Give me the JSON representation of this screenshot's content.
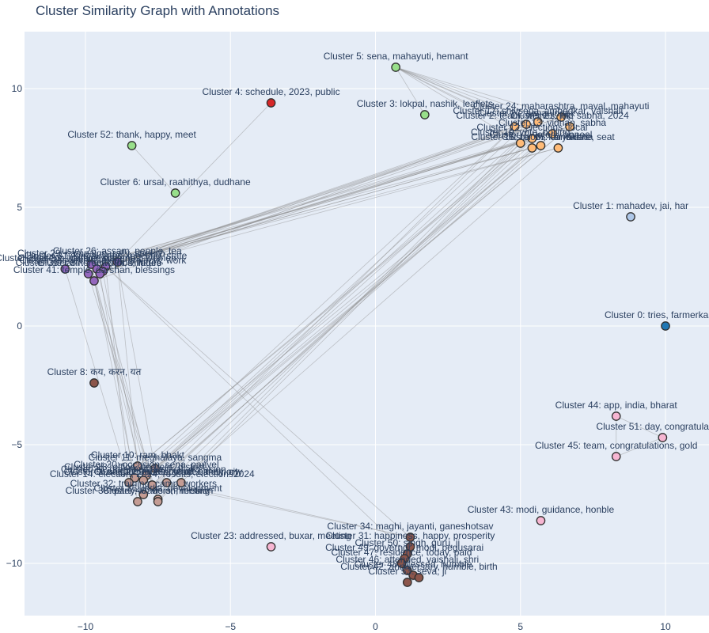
{
  "title": "Cluster Similarity Graph with Annotations",
  "chart_data": {
    "type": "scatter",
    "title": "Cluster Similarity Graph with Annotations",
    "xlabel": "",
    "ylabel": "",
    "xlim": [
      -12.1,
      11.5
    ],
    "ylim": [
      -12.2,
      12.4
    ],
    "xticks": [
      -10,
      -5,
      0,
      5,
      10
    ],
    "yticks": [
      -10,
      -5,
      0,
      5,
      10
    ],
    "grid": true,
    "legend": "none",
    "points": [
      {
        "id": 0,
        "label": "Cluster 0: tries, farmerkaskar",
        "x": 10.0,
        "y": 0.0,
        "color": "#1f77b4"
      },
      {
        "id": 1,
        "label": "Cluster 1: mahadev, jai, har",
        "x": 8.8,
        "y": 4.6,
        "color": "#aec7e8"
      },
      {
        "id": 4,
        "label": "Cluster 4: schedule, 2023, public",
        "x": -3.6,
        "y": 9.4,
        "color": "#d62728"
      },
      {
        "id": 5,
        "label": "Cluster 5: sena, mahayuti, hemant",
        "x": 0.7,
        "y": 10.9,
        "color": "#98df8a"
      },
      {
        "id": 3,
        "label": "Cluster 3: lokpal, nashik, leaflets",
        "x": 1.7,
        "y": 8.9,
        "color": "#98df8a"
      },
      {
        "id": 52,
        "label": "Cluster 52: thank, happy, meet",
        "x": -8.4,
        "y": 7.6,
        "color": "#98df8a"
      },
      {
        "id": 6,
        "label": "Cluster 6: ursal, raahithya, dudhane",
        "x": -6.9,
        "y": 5.6,
        "color": "#98df8a"
      },
      {
        "id": 24,
        "label": "Cluster 24: maharashtra, maval, mahayuti",
        "x": 6.4,
        "y": 8.8,
        "color": "#ffbb78"
      },
      {
        "id": 17,
        "label": "Cluster 17: shivsena, ambedkar, vaishali",
        "x": 5.6,
        "y": 8.6,
        "color": "#ffbb78"
      },
      {
        "id": 27,
        "label": "Cluster 27: sena, index",
        "x": 5.2,
        "y": 8.5,
        "color": "#ffbb78"
      },
      {
        "id": 2,
        "label": "Cluster 2: team, wishes, mp",
        "x": 4.8,
        "y": 8.4,
        "color": "#ffbb78"
      },
      {
        "id": 21,
        "label": "Cluster 21: lok, sabha, 2024",
        "x": 6.7,
        "y": 8.4,
        "color": "#ffbb78"
      },
      {
        "id": 13,
        "label": "Cluster 13: vidhan, sabha",
        "x": 6.1,
        "y": 8.1,
        "color": "#ffbb78"
      },
      {
        "id": 12,
        "label": "Cluster 12: elections, local",
        "x": 5.4,
        "y": 7.9,
        "color": "#ffbb78"
      },
      {
        "id": 19,
        "label": "Cluster 19: vote, polling",
        "x": 5.0,
        "y": 7.7,
        "color": "#ffbb78"
      },
      {
        "id": 7,
        "label": "Cluster 7: voters, appeal",
        "x": 5.7,
        "y": 7.6,
        "color": "#ffbb78"
      },
      {
        "id": 15,
        "label": "Cluster 15: booth, karyakarta",
        "x": 5.4,
        "y": 7.5,
        "color": "#ffbb78"
      },
      {
        "id": 16,
        "label": "Cluster 16: candidate, seat",
        "x": 6.3,
        "y": 7.5,
        "color": "#ffbb78"
      },
      {
        "id": 26,
        "label": "Cluster 26: assam, people, tea",
        "x": -8.9,
        "y": 2.7,
        "color": "#9467bd"
      },
      {
        "id": 29,
        "label": "Cluster 29: campaign, rally, speech",
        "x": -9.8,
        "y": 2.6,
        "color": "#9467bd"
      },
      {
        "id": 31,
        "label": "Cluster 31: karyakartas, meeting, state",
        "x": -9.3,
        "y": 2.5,
        "color": "#9467bd"
      },
      {
        "id": 33,
        "label": "Cluster 33: welfare, schemes, women",
        "x": -9.6,
        "y": 2.4,
        "color": "#9467bd"
      },
      {
        "id": 35,
        "label": "Cluster 35: development, projects, work",
        "x": -9.4,
        "y": 2.3,
        "color": "#9467bd"
      },
      {
        "id": 37,
        "label": "Cluster 37: youth, jobs, future",
        "x": -9.5,
        "y": 2.2,
        "color": "#9467bd"
      },
      {
        "id": 25,
        "label": "Cluster 25: sena, panvel, citizens",
        "x": -10.7,
        "y": 2.4,
        "color": "#9467bd"
      },
      {
        "id": 39,
        "label": "Cluster 39: farmers, water, villages",
        "x": -9.9,
        "y": 2.2,
        "color": "#9467bd"
      },
      {
        "id": 41,
        "label": "Cluster 41: temple, darshan, blessings",
        "x": -9.7,
        "y": 1.9,
        "color": "#9467bd"
      },
      {
        "id": 8,
        "label": "Cluster 8: कय, करन, यत",
        "x": -9.7,
        "y": -2.4,
        "color": "#8c564b"
      },
      {
        "id": 10,
        "label": "Cluster 10: ram, bhakt",
        "x": -8.2,
        "y": -5.9,
        "color": "#c49c94"
      },
      {
        "id": 11,
        "label": "Cluster 11: meghalaya, sangma",
        "x": -7.6,
        "y": -6.0,
        "color": "#c49c94"
      },
      {
        "id": 30,
        "label": "Cluster 30: occasion, sena, panvel",
        "x": -7.9,
        "y": -6.3,
        "color": "#c49c94"
      },
      {
        "id": 18,
        "label": "Cluster 18: office, bearers, district",
        "x": -8.3,
        "y": -6.4,
        "color": "#c49c94"
      },
      {
        "id": 20,
        "label": "Cluster 20: greetings, festival, occasion",
        "x": -8.0,
        "y": -6.5,
        "color": "#c49c94"
      },
      {
        "id": 9,
        "label": "Cluster 9: nagpur, routes, yatra",
        "x": -8.5,
        "y": -6.6,
        "color": "#c49c94"
      },
      {
        "id": 22,
        "label": "Cluster 22: tribute, leader, memory",
        "x": -7.2,
        "y": -6.6,
        "color": "#c49c94"
      },
      {
        "id": 28,
        "label": "Cluster 28: police, safety, city",
        "x": -6.7,
        "y": -6.6,
        "color": "#c49c94"
      },
      {
        "id": 14,
        "label": "Cluster 14: election, 2024, results, elections2024",
        "x": -7.7,
        "y": -6.7,
        "color": "#c49c94"
      },
      {
        "id": 32,
        "label": "Cluster 32: training, camp, workers",
        "x": -8.0,
        "y": -7.1,
        "color": "#c49c94"
      },
      {
        "id": 36,
        "label": "Cluster 36: india, development",
        "x": -7.5,
        "y": -7.3,
        "color": "#c49c94"
      },
      {
        "id": 38,
        "label": "Cluster 38: party, leaders, meeting",
        "x": -8.2,
        "y": -7.4,
        "color": "#c49c94"
      },
      {
        "id": 40,
        "label": "Cluster 40: vision, mission",
        "x": -7.5,
        "y": -7.4,
        "color": "#c49c94"
      },
      {
        "id": 44,
        "label": "Cluster 44: app, india, bharat",
        "x": 8.3,
        "y": -3.8,
        "color": "#f7b6d2"
      },
      {
        "id": 51,
        "label": "Cluster 51: day, congratulations",
        "x": 9.9,
        "y": -4.7,
        "color": "#f7b6d2"
      },
      {
        "id": 45,
        "label": "Cluster 45: team, congratulations, gold",
        "x": 8.3,
        "y": -5.5,
        "color": "#f7b6d2"
      },
      {
        "id": 43,
        "label": "Cluster 43: modi, guidance, honble",
        "x": 5.7,
        "y": -8.2,
        "color": "#f7b6d2"
      },
      {
        "id": 23,
        "label": "Cluster 23: addressed, buxar, meeting",
        "x": -3.6,
        "y": -9.3,
        "color": "#f7b6d2"
      },
      {
        "id": 34,
        "label": "Cluster 34: maghi, jayanti, ganeshotsav",
        "x": 1.2,
        "y": -8.9,
        "color": "#8c564b"
      },
      {
        "id": 31,
        "label": "Cluster 31: happiness, happy, prosperity",
        "x": 1.2,
        "y": -9.3,
        "color": "#8c564b"
      },
      {
        "id": 50,
        "label": "Cluster 50: singh, guru, ji",
        "x": 1.1,
        "y": -9.6,
        "color": "#8c564b"
      },
      {
        "id": 49,
        "label": "Cluster 49: governor, modi, begusarai",
        "x": 1.0,
        "y": -9.8,
        "color": "#8c564b"
      },
      {
        "id": 47,
        "label": "Cluster 47: residence, today, paid",
        "x": 0.9,
        "y": -10.0,
        "color": "#8c564b"
      },
      {
        "id": 46,
        "label": "Cluster 46: attended, vaishali, shri",
        "x": 1.1,
        "y": -10.3,
        "color": "#8c564b"
      },
      {
        "id": 48,
        "label": "Cluster 48: blessed, humble",
        "x": 1.3,
        "y": -10.5,
        "color": "#8c564b"
      },
      {
        "id": 42,
        "label": "Cluster 42: anniversary, humble, birth",
        "x": 1.5,
        "y": -10.6,
        "color": "#8c564b"
      },
      {
        "id": 53,
        "label": "Cluster 53: seva, ji",
        "x": 1.1,
        "y": -10.8,
        "color": "#8c564b"
      }
    ],
    "edges": [
      [
        5,
        3
      ],
      [
        5,
        24
      ],
      [
        5,
        17
      ],
      [
        5,
        27
      ],
      [
        5,
        2
      ],
      [
        5,
        21
      ],
      [
        5,
        13
      ],
      [
        5,
        12
      ],
      [
        5,
        19
      ],
      [
        4,
        26
      ],
      [
        52,
        6
      ],
      [
        24,
        26
      ],
      [
        17,
        26
      ],
      [
        27,
        26
      ],
      [
        2,
        26
      ],
      [
        21,
        29
      ],
      [
        13,
        29
      ],
      [
        12,
        31
      ],
      [
        19,
        31
      ],
      [
        7,
        33
      ],
      [
        15,
        33
      ],
      [
        16,
        35
      ],
      [
        24,
        37
      ],
      [
        17,
        39
      ],
      [
        2,
        41
      ],
      [
        12,
        35
      ],
      [
        21,
        33
      ],
      [
        13,
        31
      ],
      [
        7,
        29
      ],
      [
        16,
        26
      ],
      [
        24,
        10
      ],
      [
        17,
        11
      ],
      [
        27,
        30
      ],
      [
        2,
        18
      ],
      [
        21,
        20
      ],
      [
        13,
        9
      ],
      [
        12,
        22
      ],
      [
        19,
        28
      ],
      [
        7,
        14
      ],
      [
        15,
        32
      ],
      [
        16,
        36
      ],
      [
        24,
        38
      ],
      [
        17,
        40
      ],
      [
        2,
        14
      ],
      [
        21,
        30
      ],
      [
        13,
        11
      ],
      [
        12,
        10
      ],
      [
        19,
        20
      ],
      [
        26,
        10
      ],
      [
        29,
        18
      ],
      [
        31,
        9
      ],
      [
        33,
        14
      ],
      [
        35,
        32
      ],
      [
        37,
        38
      ],
      [
        39,
        40
      ],
      [
        41,
        36
      ],
      [
        25,
        9
      ],
      [
        26,
        11
      ],
      [
        29,
        30
      ],
      [
        41,
        20
      ],
      [
        20,
        34
      ],
      [
        22,
        34
      ],
      [
        34,
        31
      ],
      [
        31,
        50
      ],
      [
        50,
        49
      ],
      [
        49,
        47
      ],
      [
        47,
        46
      ],
      [
        46,
        48
      ],
      [
        48,
        42
      ],
      [
        42,
        53
      ],
      [
        44,
        51
      ],
      [
        44,
        45
      ],
      [
        51,
        45
      ]
    ]
  }
}
